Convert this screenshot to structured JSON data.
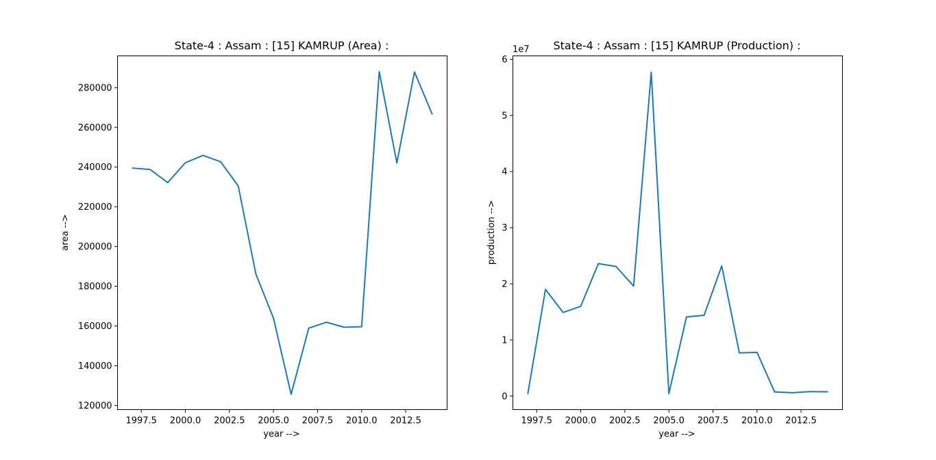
{
  "chart_data": [
    {
      "type": "line",
      "title": "State-4 : Assam : [15] KAMRUP (Area) :",
      "xlabel": "year -->",
      "ylabel": "area -->",
      "x": [
        1997,
        1998,
        1999,
        2000,
        2001,
        2002,
        2003,
        2004,
        2005,
        2006,
        2007,
        2008,
        2009,
        2010,
        2011,
        2012,
        2013,
        2014
      ],
      "series": [
        {
          "values": [
            239500,
            238800,
            232200,
            242200,
            245900,
            242700,
            230500,
            186200,
            163900,
            125600,
            158900,
            161900,
            159400,
            159600,
            288100,
            242100,
            287900,
            266700
          ]
        }
      ],
      "xlim": [
        1996.15,
        2014.85
      ],
      "ylim": [
        117900,
        296000
      ],
      "xticks": [
        1997.5,
        2000.0,
        2002.5,
        2005.0,
        2007.5,
        2010.0,
        2012.5
      ],
      "xtick_labels": [
        "1997.5",
        "2000.0",
        "2002.5",
        "2005.0",
        "2007.5",
        "2010.0",
        "2012.5"
      ],
      "yticks": [
        120000,
        140000,
        160000,
        180000,
        200000,
        220000,
        240000,
        260000,
        280000
      ],
      "ytick_labels": [
        "120000",
        "140000",
        "160000",
        "180000",
        "200000",
        "220000",
        "240000",
        "260000",
        "280000"
      ],
      "offset_label": "",
      "color": "#1f77b4",
      "grid": false
    },
    {
      "type": "line",
      "title": "State-4 : Assam : [15] KAMRUP (Production) :",
      "xlabel": "year -->",
      "ylabel": "production -->",
      "x": [
        1997,
        1998,
        1999,
        2000,
        2001,
        2002,
        2003,
        2004,
        2005,
        2006,
        2007,
        2008,
        2009,
        2010,
        2011,
        2012,
        2013,
        2014
      ],
      "series": [
        {
          "values": [
            450000,
            19000000,
            14900000,
            16000000,
            23600000,
            23100000,
            19600000,
            57700000,
            450000,
            14100000,
            14400000,
            23200000,
            7700000,
            7800000,
            750000,
            600000,
            800000,
            780000
          ]
        }
      ],
      "xlim": [
        1996.15,
        2014.85
      ],
      "ylim": [
        -2400000,
        60600000
      ],
      "xticks": [
        1997.5,
        2000.0,
        2002.5,
        2005.0,
        2007.5,
        2010.0,
        2012.5
      ],
      "xtick_labels": [
        "1997.5",
        "2000.0",
        "2002.5",
        "2005.0",
        "2007.5",
        "2010.0",
        "2012.5"
      ],
      "yticks": [
        0,
        10000000,
        20000000,
        30000000,
        40000000,
        50000000,
        60000000
      ],
      "ytick_labels": [
        "0",
        "1",
        "2",
        "3",
        "4",
        "5",
        "6"
      ],
      "offset_label": "1e7",
      "color": "#1f77b4",
      "grid": false
    }
  ]
}
